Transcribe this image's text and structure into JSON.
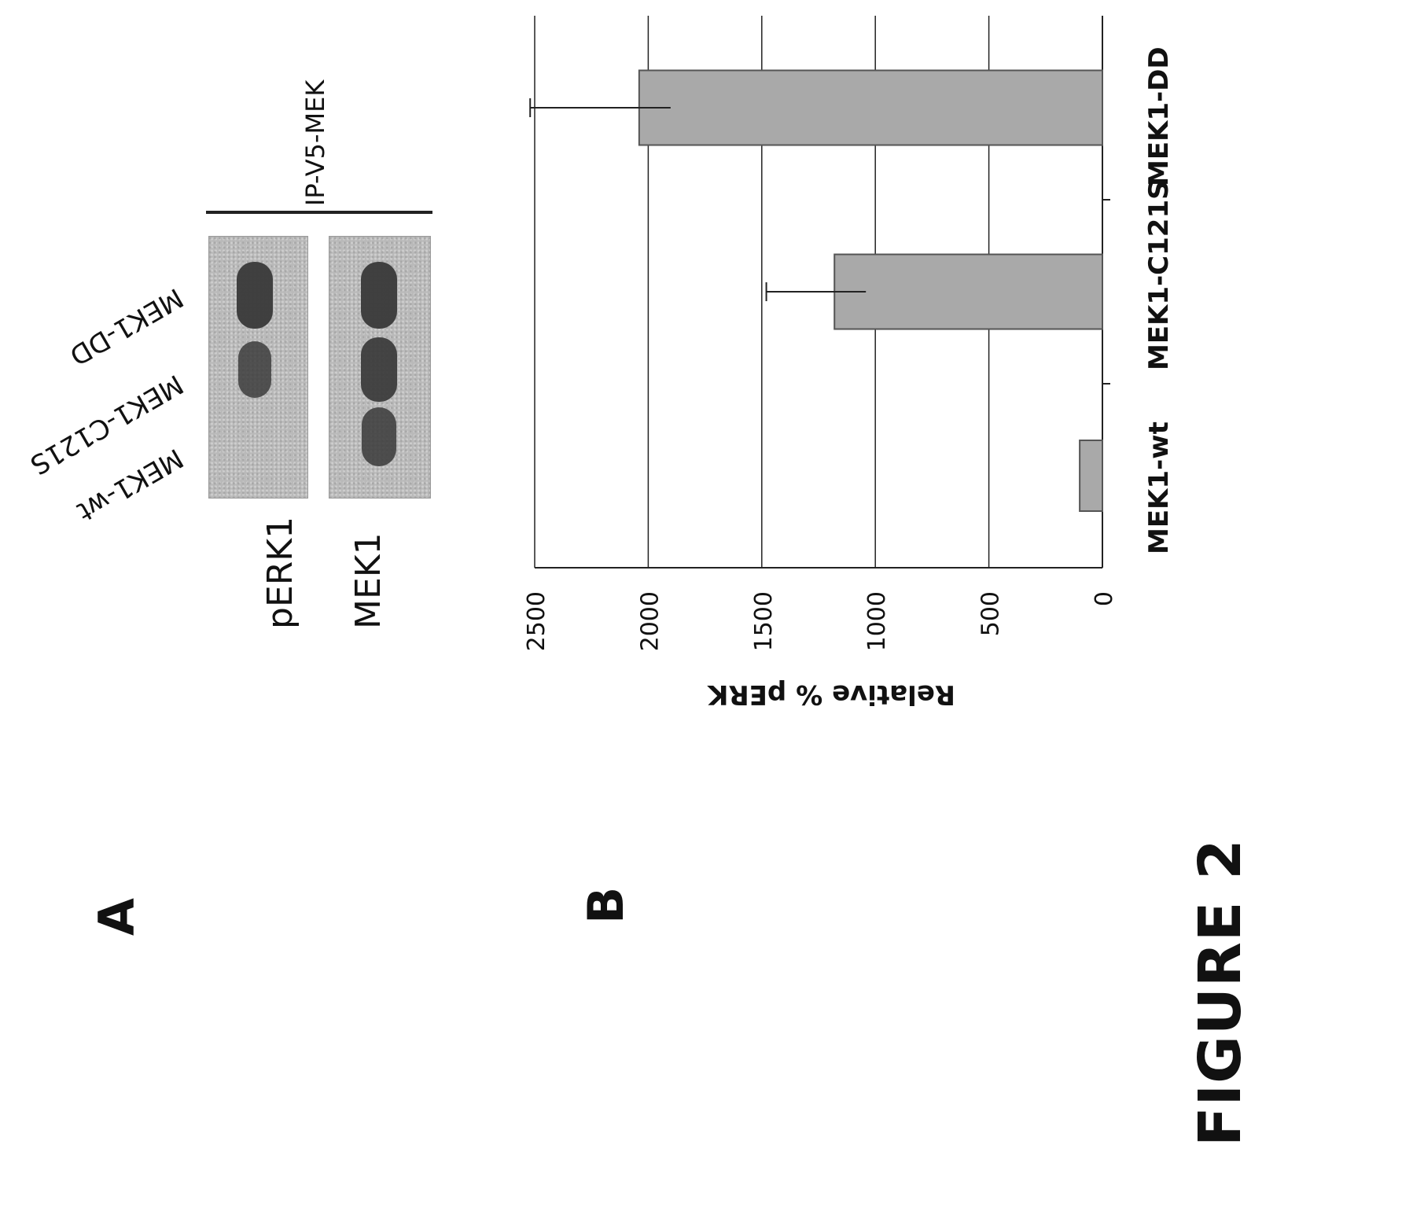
{
  "figure_label": "FIGURE 2",
  "panel_a": {
    "label": "A",
    "lanes": [
      "MEK1-wt",
      "MEK1-C121S",
      "MEK1-DD"
    ],
    "rows": [
      "pERK1",
      "MEK1"
    ],
    "ip_label": "IP-V5-MEK",
    "band_intensity": {
      "pERK1": [
        0.0,
        0.65,
        0.9
      ],
      "MEK1": [
        0.7,
        0.85,
        0.9
      ]
    }
  },
  "panel_b": {
    "label": "B",
    "chart_data": {
      "type": "bar",
      "categories": [
        "MEK1-wt",
        "MEK1-C121S",
        "MEK1-DD"
      ],
      "values": [
        100,
        1180,
        2040
      ],
      "errors": [
        0,
        300,
        480
      ],
      "ylabel": "Relative % pERK",
      "ylim": [
        0,
        2500
      ],
      "yticks": [
        "0",
        "500",
        "1000",
        "1500",
        "2000",
        "2500"
      ],
      "grid": true,
      "colors": {
        "bar": "#a9a9a9",
        "bar_edge": "#555555",
        "grid": "#222222"
      }
    }
  }
}
